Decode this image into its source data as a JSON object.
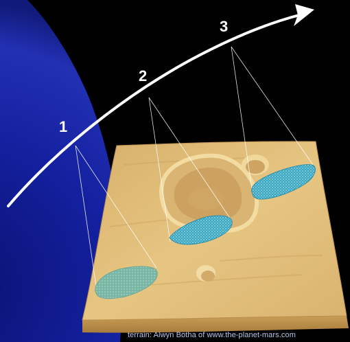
{
  "orbit": {
    "positions": [
      {
        "label": "1"
      },
      {
        "label": "2"
      },
      {
        "label": "3"
      }
    ]
  },
  "credit": "terrain: Alwyn Botha of www.the-planet-mars.com",
  "colors": {
    "space": "#000000",
    "planet_limb": "#1a28a0",
    "terrain": "#e2bf78",
    "footprint_fill": "#3ea9c3",
    "footprint_pattern": "#bfe9f2",
    "orbit_path": "#ffffff"
  }
}
